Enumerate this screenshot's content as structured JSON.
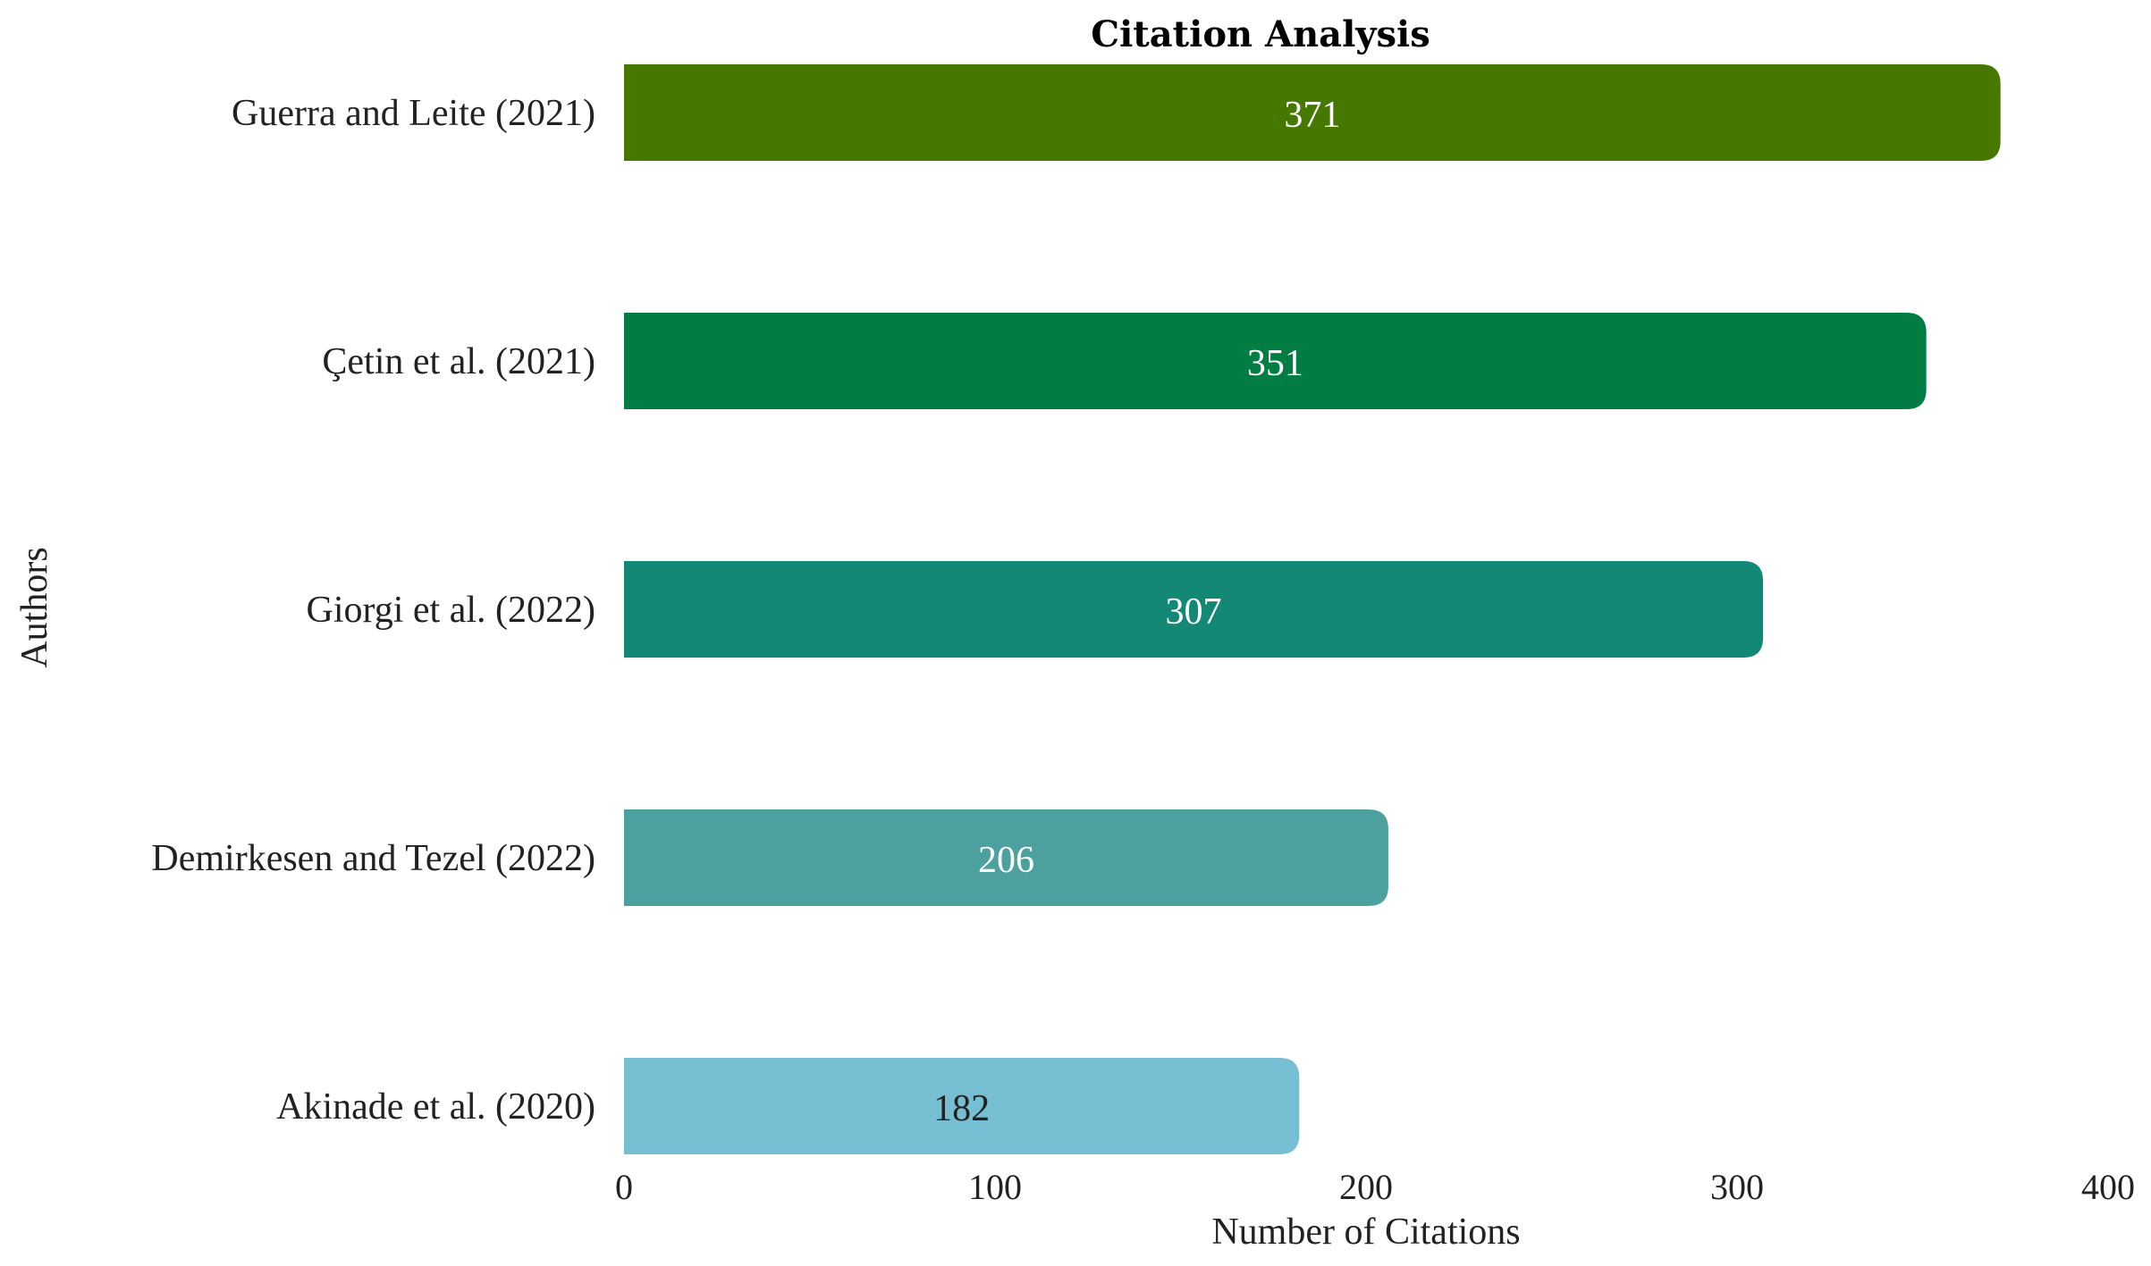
{
  "chart_data": {
    "type": "bar",
    "orientation": "horizontal",
    "title": "Citation Analysis",
    "xlabel": "Number of Citations",
    "ylabel": "Authors",
    "categories": [
      "Guerra and Leite (2021)",
      "Çetin et al. (2021)",
      "Giorgi et al. (2022)",
      "Demirkesen and Tezel (2022)",
      "Akinade et al. (2020)"
    ],
    "values": [
      371,
      351,
      307,
      206,
      182
    ],
    "colors": [
      "#467800",
      "#017D44",
      "#128875",
      "#4CA19F",
      "#76BFD3"
    ],
    "label_colors": [
      "#ffffff",
      "#ffffff",
      "#ffffff",
      "#ffffff",
      "#222222"
    ],
    "xlim": [
      0,
      400
    ],
    "xticks": [
      0,
      100,
      200,
      300,
      400
    ],
    "grid": false,
    "legend": "none"
  }
}
